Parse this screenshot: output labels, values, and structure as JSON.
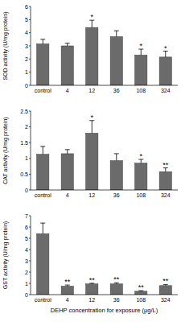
{
  "chart_data": [
    {
      "type": "bar",
      "y_label": "SOD activity (U/mg protein)",
      "categories": [
        "control",
        "4",
        "12",
        "36",
        "108",
        "324"
      ],
      "values": [
        3.15,
        3.0,
        4.4,
        3.7,
        2.3,
        2.15
      ],
      "errors": [
        0.35,
        0.2,
        0.55,
        0.45,
        0.45,
        0.45
      ],
      "annotations": [
        null,
        null,
        "*",
        null,
        "*",
        "*"
      ],
      "ylim": [
        0,
        6
      ],
      "yticks": [
        0,
        1,
        2,
        3,
        4,
        5,
        6
      ],
      "grid": false,
      "color": "#6b6b6b"
    },
    {
      "type": "bar",
      "y_label": "CAT activity (U/mg protein)",
      "categories": [
        "control",
        "4",
        "12",
        "36",
        "108",
        "324"
      ],
      "values": [
        1.13,
        1.15,
        1.8,
        0.93,
        0.85,
        0.58
      ],
      "errors": [
        0.25,
        0.13,
        0.4,
        0.22,
        0.12,
        0.12
      ],
      "annotations": [
        null,
        null,
        "*",
        null,
        "*",
        "**"
      ],
      "ylim": [
        0,
        2.5
      ],
      "yticks": [
        0,
        0.5,
        1,
        1.5,
        2,
        2.5
      ],
      "grid": false,
      "color": "#6b6b6b"
    },
    {
      "type": "bar",
      "y_label": "GST activity (U/mg protein)",
      "x_label": "DEHP concentration for exposure (μg/L)",
      "categories": [
        "control",
        "4",
        "12",
        "36",
        "108",
        "324"
      ],
      "values": [
        5.4,
        0.75,
        0.95,
        0.95,
        0.3,
        0.8
      ],
      "errors": [
        0.95,
        0.1,
        0.06,
        0.1,
        0.05,
        0.1
      ],
      "annotations": [
        null,
        "**",
        "**",
        "**",
        "**",
        "**"
      ],
      "ylim": [
        0,
        7
      ],
      "yticks": [
        0,
        1,
        2,
        3,
        4,
        5,
        6,
        7
      ],
      "grid": false,
      "color": "#6b6b6b"
    }
  ]
}
